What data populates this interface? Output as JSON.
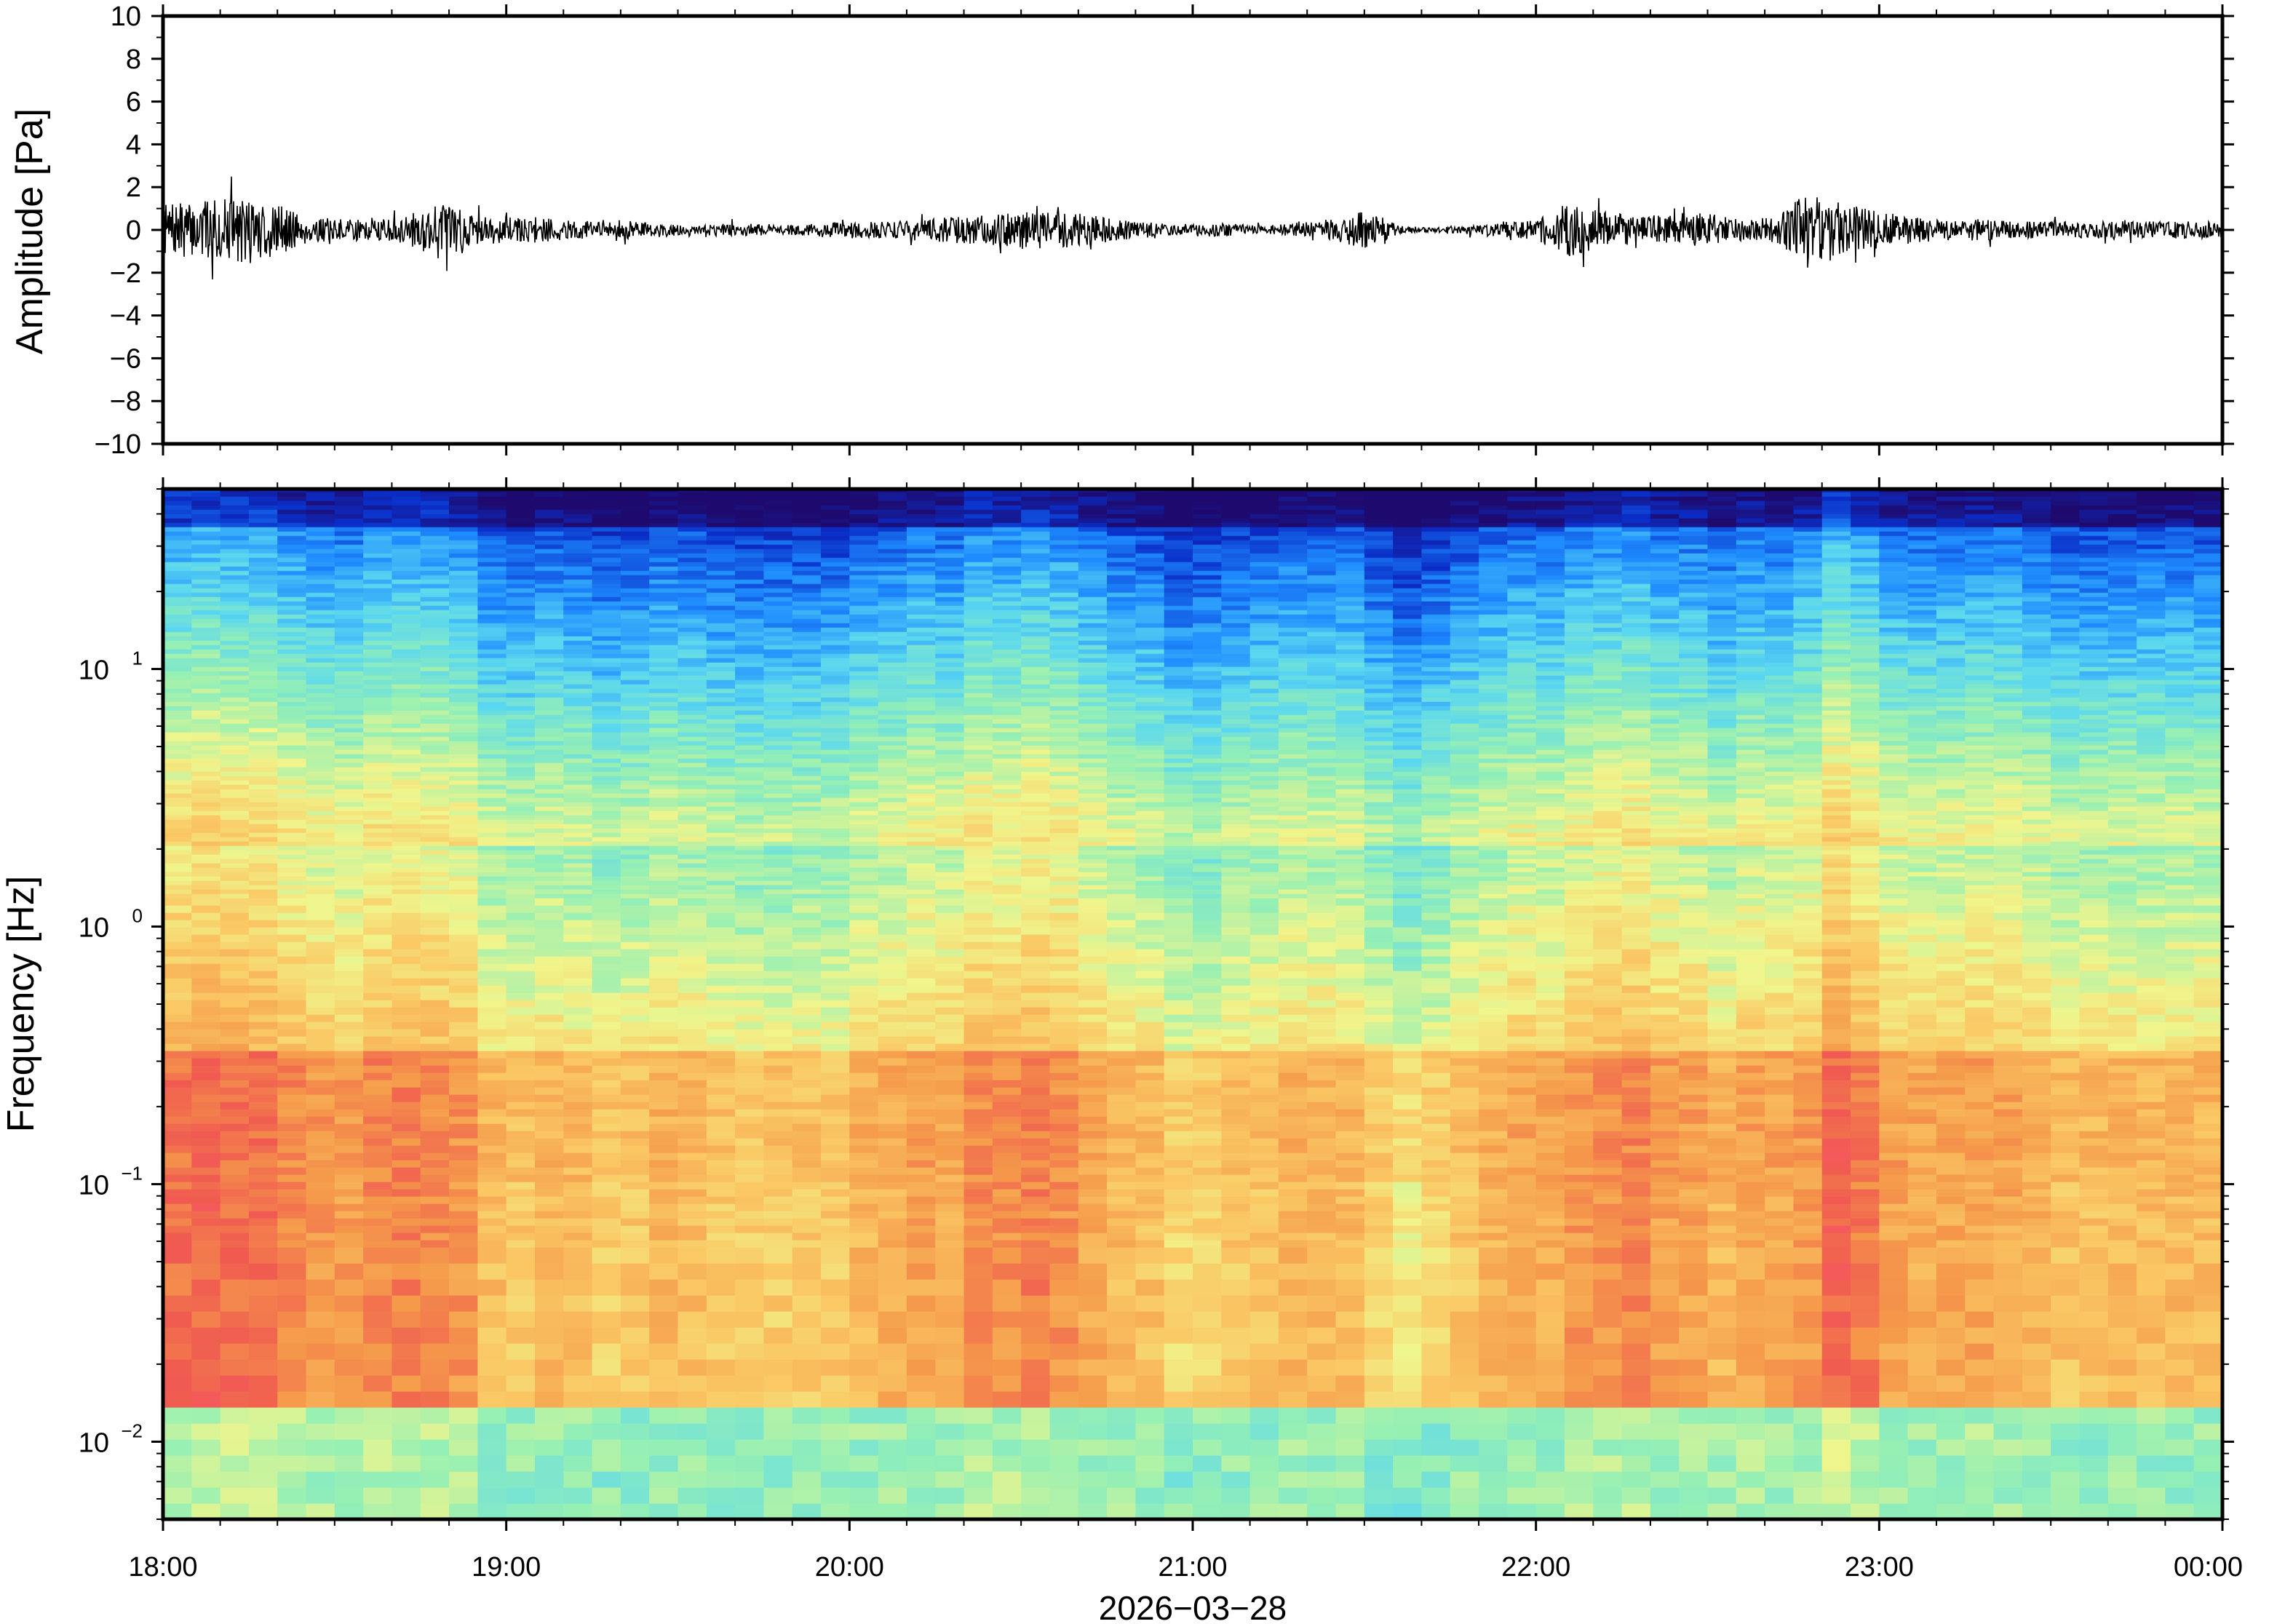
{
  "chart_data": [
    {
      "type": "line",
      "panel": "waveform",
      "ylabel": "Amplitude [Pa]",
      "ylim": [
        -10,
        10
      ],
      "yticks": [
        10,
        8,
        6,
        4,
        2,
        0,
        -2,
        -4,
        -6,
        -8,
        -10
      ],
      "ytick_labels": [
        "10",
        "8",
        "6",
        "4",
        "2",
        "0",
        "−2",
        "−4",
        "−6",
        "−8",
        "−10"
      ],
      "xlim_hours": [
        18,
        24
      ],
      "color": "#000000",
      "envelope": {
        "hours": [
          18.0,
          18.1,
          18.2,
          18.3,
          18.4,
          18.5,
          18.6,
          18.7,
          18.8,
          18.9,
          19.0,
          19.1,
          19.2,
          19.3,
          19.4,
          19.5,
          19.6,
          19.7,
          19.8,
          19.9,
          20.0,
          20.1,
          20.2,
          20.3,
          20.4,
          20.5,
          20.6,
          20.7,
          20.8,
          20.9,
          21.0,
          21.1,
          21.2,
          21.3,
          21.4,
          21.5,
          21.6,
          21.7,
          21.8,
          21.9,
          22.0,
          22.1,
          22.2,
          22.3,
          22.4,
          22.5,
          22.6,
          22.7,
          22.8,
          22.9,
          23.0,
          23.1,
          23.2,
          23.3,
          23.4,
          23.5,
          23.6,
          23.7,
          23.8,
          23.9,
          24.0
        ],
        "amplitude_pa": [
          1.2,
          1.3,
          1.5,
          1.6,
          0.7,
          0.5,
          0.5,
          0.6,
          1.4,
          0.7,
          0.6,
          0.6,
          0.4,
          0.5,
          0.4,
          0.3,
          0.3,
          0.3,
          0.2,
          0.3,
          0.4,
          0.4,
          0.5,
          0.6,
          0.7,
          0.9,
          0.9,
          0.7,
          0.5,
          0.3,
          0.3,
          0.3,
          0.2,
          0.3,
          0.5,
          1.0,
          0.2,
          0.1,
          0.2,
          0.4,
          0.5,
          1.3,
          0.9,
          0.6,
          0.8,
          0.8,
          0.5,
          0.6,
          1.9,
          1.2,
          0.9,
          0.6,
          0.5,
          0.5,
          0.4,
          0.4,
          0.4,
          0.4,
          0.4,
          0.4,
          0.4
        ]
      }
    },
    {
      "type": "heatmap",
      "panel": "spectrogram",
      "ylabel": "Frequency [Hz]",
      "yscale": "log",
      "ylim": [
        0.005,
        50
      ],
      "yticks": [
        0.01,
        0.1,
        1,
        10
      ],
      "ytick_labels": [
        {
          "base": "10",
          "exp": "−2"
        },
        {
          "base": "10",
          "exp": "−1"
        },
        {
          "base": "10",
          "exp": "0"
        },
        {
          "base": "10",
          "exp": "1"
        }
      ],
      "colormap": [
        "#1e0a6e",
        "#0a2ec8",
        "#1e8cff",
        "#5ad7f0",
        "#96f0b4",
        "#f0f58c",
        "#fac864",
        "#f59b4b",
        "#f05a50",
        "#ff5a78"
      ],
      "xlim_hours": [
        18,
        24
      ],
      "xticks": [
        "18:00",
        "19:00",
        "20:00",
        "21:00",
        "22:00",
        "23:00",
        "00:00"
      ],
      "xlabel": "2026−03−28",
      "column_energy": {
        "hours": [
          18.0,
          18.25,
          18.5,
          18.75,
          19.0,
          19.25,
          19.5,
          19.75,
          20.0,
          20.25,
          20.5,
          20.75,
          21.0,
          21.25,
          21.5,
          21.6,
          21.75,
          22.0,
          22.25,
          22.5,
          22.75,
          22.9,
          23.0,
          23.25,
          23.5,
          23.75,
          24.0
        ],
        "level": [
          0.8,
          0.82,
          0.55,
          0.72,
          0.42,
          0.35,
          0.42,
          0.3,
          0.38,
          0.55,
          0.72,
          0.5,
          0.3,
          0.4,
          0.5,
          0.1,
          0.38,
          0.52,
          0.72,
          0.5,
          0.5,
          0.88,
          0.6,
          0.55,
          0.45,
          0.4,
          0.48
        ]
      }
    }
  ]
}
